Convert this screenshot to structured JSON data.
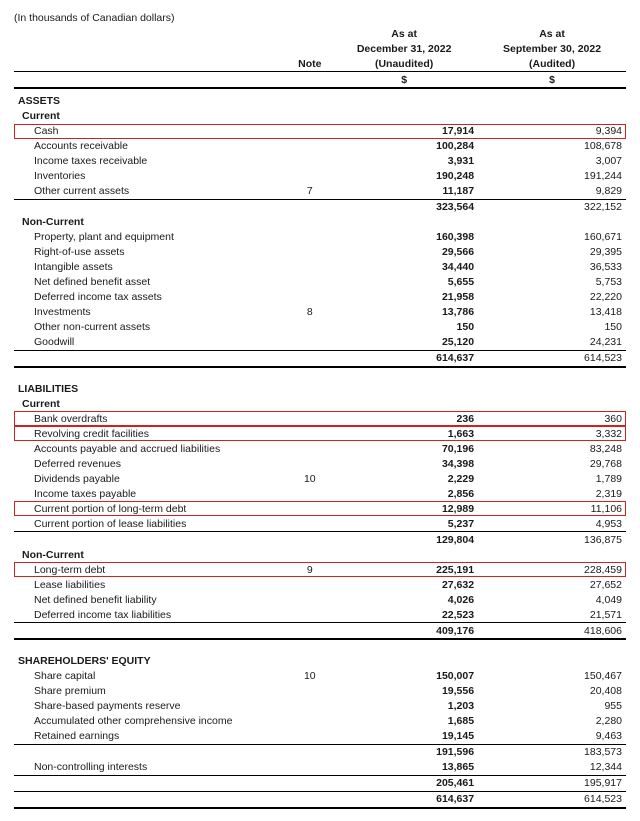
{
  "meta": {
    "units": "(In thousands of Canadian dollars)"
  },
  "columns": {
    "note": "Note",
    "c1": {
      "asat": "As at",
      "date": "December 31, 2022",
      "status": "(Unaudited)",
      "sym": "$"
    },
    "c2": {
      "asat": "As at",
      "date": "September 30, 2022",
      "status": "(Audited)",
      "sym": "$"
    }
  },
  "assets": {
    "title": "ASSETS",
    "current": {
      "title": "Current",
      "rows": [
        {
          "label": "Cash",
          "v1": "17,914",
          "v2": "9,394",
          "hl": true
        },
        {
          "label": "Accounts receivable",
          "v1": "100,284",
          "v2": "108,678"
        },
        {
          "label": "Income taxes receivable",
          "v1": "3,931",
          "v2": "3,007"
        },
        {
          "label": "Inventories",
          "v1": "190,248",
          "v2": "191,244"
        },
        {
          "label": "Other current assets",
          "note": "7",
          "v1": "11,187",
          "v2": "9,829"
        }
      ],
      "subtotal": {
        "v1": "323,564",
        "v2": "322,152"
      }
    },
    "noncurrent": {
      "title": "Non-Current",
      "rows": [
        {
          "label": "Property, plant and equipment",
          "v1": "160,398",
          "v2": "160,671"
        },
        {
          "label": "Right-of-use assets",
          "v1": "29,566",
          "v2": "29,395"
        },
        {
          "label": "Intangible assets",
          "v1": "34,440",
          "v2": "36,533"
        },
        {
          "label": "Net defined benefit asset",
          "v1": "5,655",
          "v2": "5,753"
        },
        {
          "label": "Deferred income tax assets",
          "v1": "21,958",
          "v2": "22,220"
        },
        {
          "label": "Investments",
          "note": "8",
          "v1": "13,786",
          "v2": "13,418"
        },
        {
          "label": "Other non-current assets",
          "v1": "150",
          "v2": "150"
        },
        {
          "label": "Goodwill",
          "v1": "25,120",
          "v2": "24,231"
        }
      ],
      "total": {
        "v1": "614,637",
        "v2": "614,523"
      }
    }
  },
  "liabilities": {
    "title": "LIABILITIES",
    "current": {
      "title": "Current",
      "rows": [
        {
          "label": "Bank overdrafts",
          "v1": "236",
          "v2": "360",
          "hl": true
        },
        {
          "label": "Revolving credit facilities",
          "v1": "1,663",
          "v2": "3,332",
          "hl": true
        },
        {
          "label": "Accounts payable and accrued liabilities",
          "v1": "70,196",
          "v2": "83,248"
        },
        {
          "label": "Deferred revenues",
          "v1": "34,398",
          "v2": "29,768"
        },
        {
          "label": "Dividends payable",
          "note": "10",
          "v1": "2,229",
          "v2": "1,789"
        },
        {
          "label": "Income taxes payable",
          "v1": "2,856",
          "v2": "2,319"
        },
        {
          "label": "Current portion of long-term debt",
          "v1": "12,989",
          "v2": "11,106",
          "hl": true
        },
        {
          "label": "Current portion of lease liabilities",
          "v1": "5,237",
          "v2": "4,953"
        }
      ],
      "subtotal": {
        "v1": "129,804",
        "v2": "136,875"
      }
    },
    "noncurrent": {
      "title": "Non-Current",
      "rows": [
        {
          "label": "Long-term debt",
          "note": "9",
          "v1": "225,191",
          "v2": "228,459",
          "hl": true
        },
        {
          "label": "Lease liabilities",
          "v1": "27,632",
          "v2": "27,652"
        },
        {
          "label": "Net defined benefit liability",
          "v1": "4,026",
          "v2": "4,049"
        },
        {
          "label": "Deferred income tax liabilities",
          "v1": "22,523",
          "v2": "21,571"
        }
      ],
      "total": {
        "v1": "409,176",
        "v2": "418,606"
      }
    }
  },
  "equity": {
    "title": "SHAREHOLDERS' EQUITY",
    "rows": [
      {
        "label": "Share capital",
        "note": "10",
        "v1": "150,007",
        "v2": "150,467"
      },
      {
        "label": "Share premium",
        "v1": "19,556",
        "v2": "20,408"
      },
      {
        "label": "Share-based payments reserve",
        "v1": "1,203",
        "v2": "955"
      },
      {
        "label": "Accumulated other comprehensive income",
        "v1": "1,685",
        "v2": "2,280"
      },
      {
        "label": "Retained earnings",
        "v1": "19,145",
        "v2": "9,463"
      }
    ],
    "subtotal": {
      "v1": "191,596",
      "v2": "183,573"
    },
    "nci": {
      "label": "Non-controlling interests",
      "v1": "13,865",
      "v2": "12,344"
    },
    "total1": {
      "v1": "205,461",
      "v2": "195,917"
    },
    "total2": {
      "v1": "614,637",
      "v2": "614,523"
    }
  }
}
